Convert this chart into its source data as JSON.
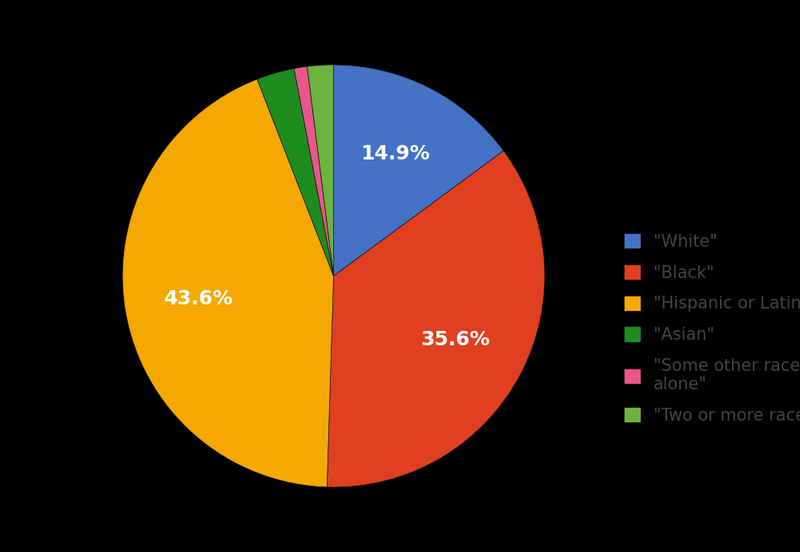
{
  "labels": [
    "\"White\"",
    "\"Black\"",
    "\"Hispanic or Latinx\"",
    "\"Asian\"",
    "\"Some other race\nalone\"",
    "\"Two or more races\""
  ],
  "values": [
    14.9,
    35.6,
    43.6,
    2.9,
    1.0,
    2.0
  ],
  "colors": [
    "#4472C4",
    "#E04020",
    "#F5A800",
    "#1E8C1E",
    "#E8578A",
    "#6DB33F"
  ],
  "pct_labels": [
    "14.9%",
    "35.6%",
    "43.6%",
    "",
    "",
    ""
  ],
  "background_color": "#000000",
  "text_color": "#ffffff",
  "legend_text_color": "#444444",
  "font_size_pct": 18,
  "font_size_legend": 15
}
